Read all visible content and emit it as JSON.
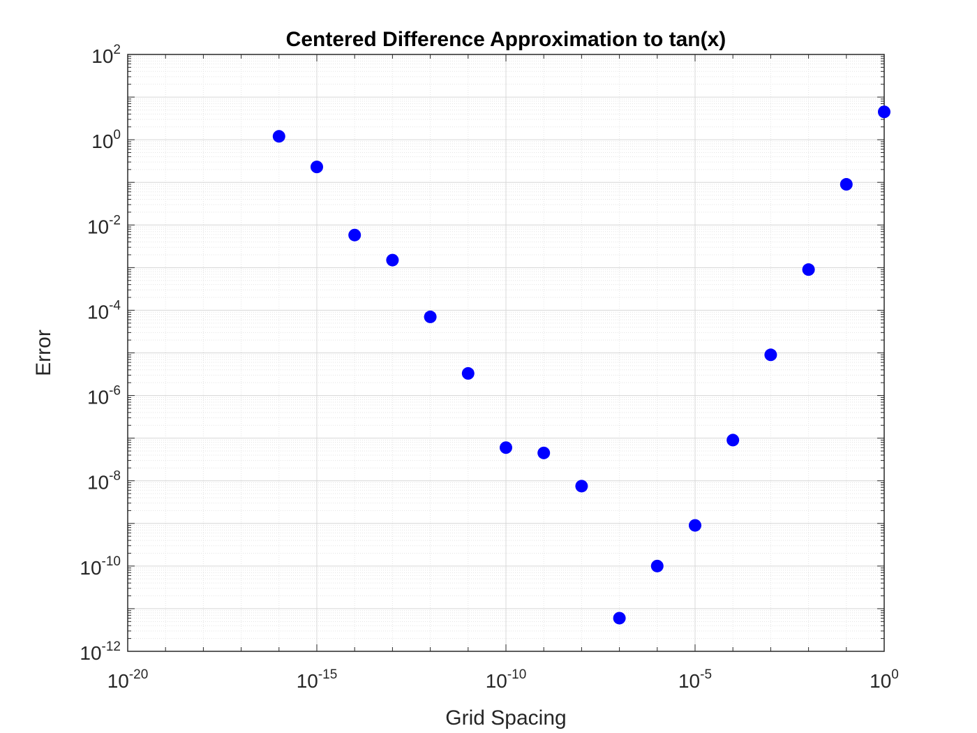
{
  "chart_data": {
    "type": "scatter",
    "title": "Centered Difference Approximation to tan(x)",
    "xlabel": "Grid Spacing",
    "ylabel": "Error",
    "x_scale": "log",
    "y_scale": "log",
    "xlim": [
      1e-20,
      1
    ],
    "ylim": [
      1e-12,
      100
    ],
    "grid": true,
    "minor_grid": true,
    "x_ticks": [
      {
        "base": "10",
        "exp": "-20",
        "value": 1e-20
      },
      {
        "base": "10",
        "exp": "-15",
        "value": 1e-15
      },
      {
        "base": "10",
        "exp": "-10",
        "value": 1e-10
      },
      {
        "base": "10",
        "exp": "-5",
        "value": 1e-05
      },
      {
        "base": "10",
        "exp": "0",
        "value": 1
      }
    ],
    "y_ticks": [
      {
        "base": "10",
        "exp": "2",
        "value": 100
      },
      {
        "base": "10",
        "exp": "0",
        "value": 1
      },
      {
        "base": "10",
        "exp": "-2",
        "value": 0.01
      },
      {
        "base": "10",
        "exp": "-4",
        "value": 0.0001
      },
      {
        "base": "10",
        "exp": "-6",
        "value": 1e-06
      },
      {
        "base": "10",
        "exp": "-8",
        "value": 1e-08
      },
      {
        "base": "10",
        "exp": "-10",
        "value": 1e-10
      },
      {
        "base": "10",
        "exp": "-12",
        "value": 1e-12
      }
    ],
    "marker_color": "#0000ff",
    "points": [
      {
        "x": 1e-16,
        "y": 1.2
      },
      {
        "x": 1e-15,
        "y": 0.23
      },
      {
        "x": 1e-14,
        "y": 0.0058
      },
      {
        "x": 1e-13,
        "y": 0.0015
      },
      {
        "x": 1e-12,
        "y": 7e-05
      },
      {
        "x": 1e-11,
        "y": 3.3e-06
      },
      {
        "x": 1e-10,
        "y": 6e-08
      },
      {
        "x": 1e-09,
        "y": 4.5e-08
      },
      {
        "x": 1e-08,
        "y": 7.5e-09
      },
      {
        "x": 1e-07,
        "y": 6e-12
      },
      {
        "x": 1e-06,
        "y": 1e-10
      },
      {
        "x": 1e-05,
        "y": 9e-10
      },
      {
        "x": 0.0001,
        "y": 9e-08
      },
      {
        "x": 0.001,
        "y": 9e-06
      },
      {
        "x": 0.01,
        "y": 0.0009
      },
      {
        "x": 0.1,
        "y": 0.09
      },
      {
        "x": 1,
        "y": 4.5
      }
    ]
  }
}
